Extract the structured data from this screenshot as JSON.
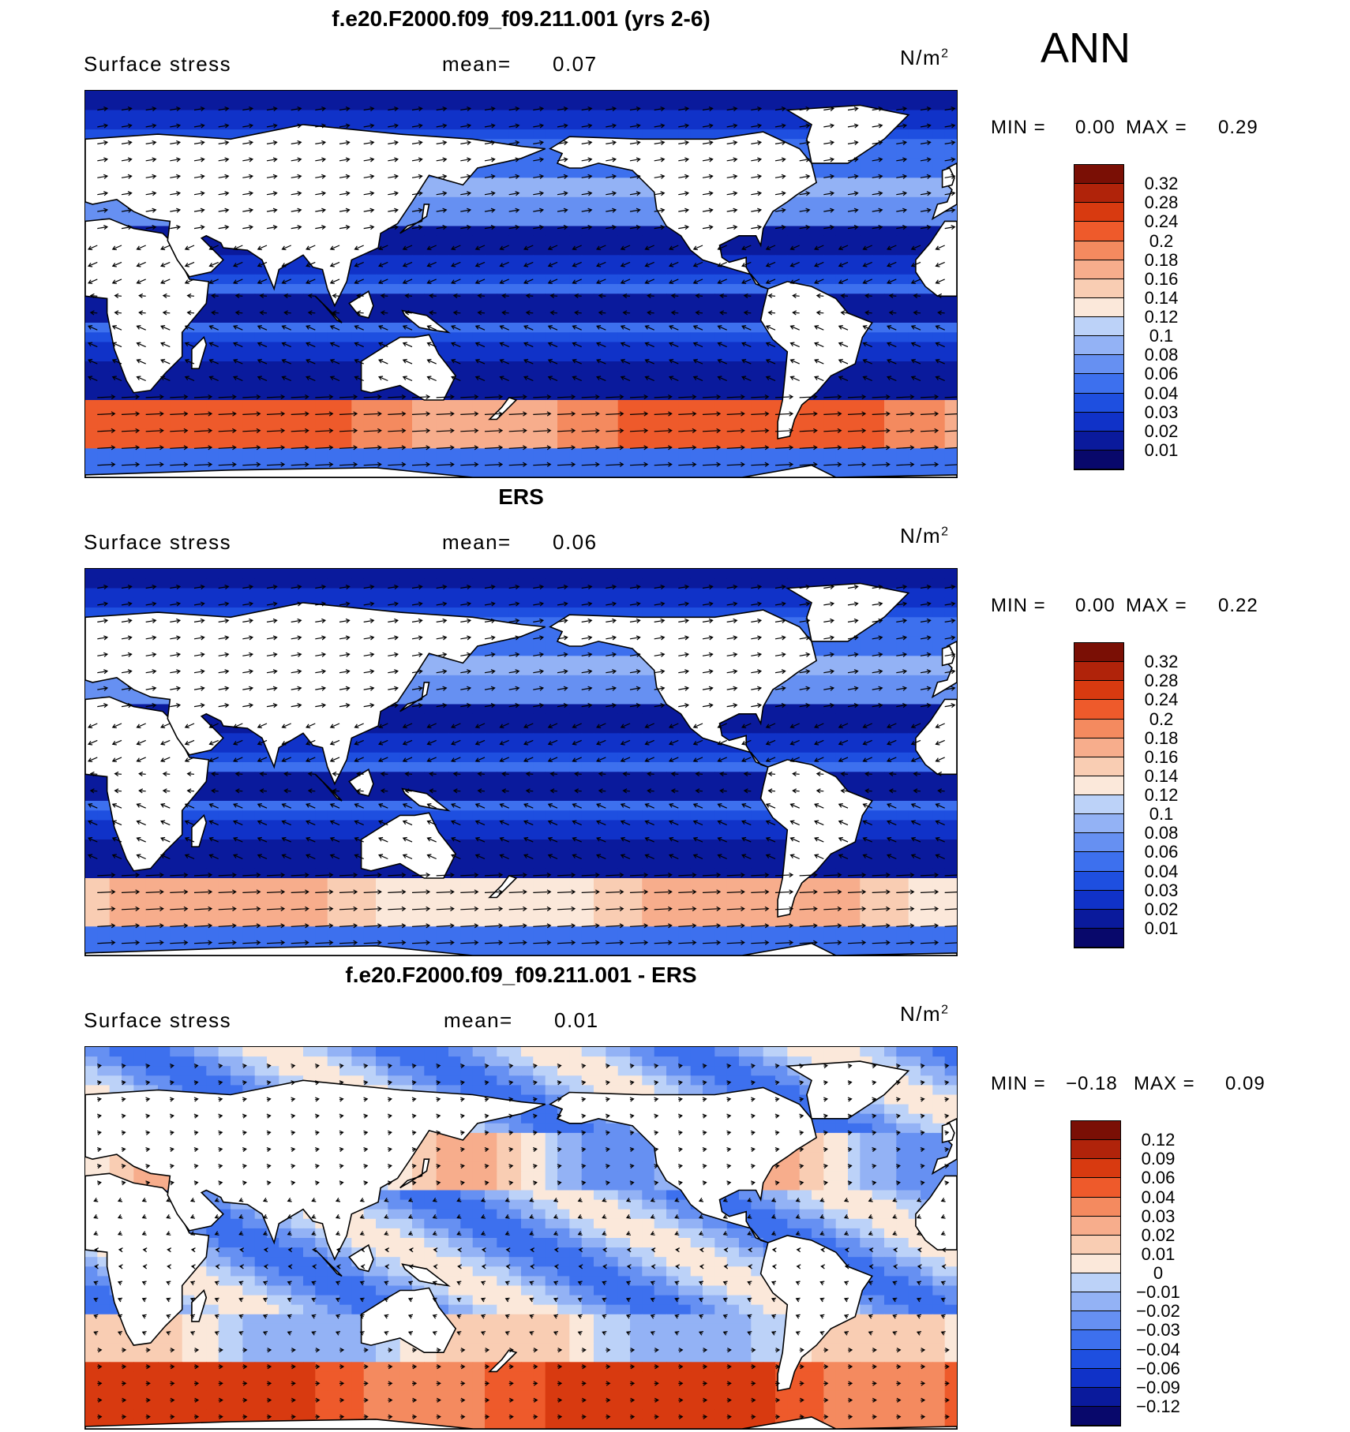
{
  "season": "ANN",
  "colors": {
    "abs_scale": [
      "#08086b",
      "#0a1a9c",
      "#1032c8",
      "#1e4fe0",
      "#3d70ee",
      "#6690f2",
      "#93b2f5",
      "#bcd2f8",
      "#dde9fb",
      "#fbe8da",
      "#f9cdb3",
      "#f7ad8c",
      "#f48a5f",
      "#ee5a2b",
      "#d83a10",
      "#b0230a",
      "#7a0f05"
    ],
    "diff_scale": [
      "#08086b",
      "#0a1a9c",
      "#1032c8",
      "#1e4fe0",
      "#3d70ee",
      "#6690f2",
      "#93b2f5",
      "#bcd2f8",
      "#dde9fb",
      "#fbe8da",
      "#f9cdb3",
      "#f7ad8c",
      "#f48a5f",
      "#ee5a2b",
      "#d83a10",
      "#b0230a",
      "#7a0f05"
    ]
  },
  "chart_data": [
    {
      "type": "heatmap",
      "title": "f.e20.F2000.f09_f09.211.001 (yrs 2-6)",
      "variable": "Surface stress",
      "mean_label": "mean=",
      "mean": "0.07",
      "units_base": "N/m",
      "units_exp": "2",
      "min_label": "MIN =",
      "min": "0.00",
      "max_label": "MAX =",
      "max": "0.29",
      "colorbar_levels": [
        "0.32",
        "0.28",
        "0.24",
        "0.2",
        "0.18",
        "0.16",
        "0.14",
        "0.12",
        "0.1",
        "0.08",
        "0.06",
        "0.04",
        "0.03",
        "0.02",
        "0.01"
      ],
      "overlay": "wind stress vectors",
      "map": "global cylindrical equidistant, 0E-360E, 70S-90N"
    },
    {
      "type": "heatmap",
      "title": "ERS",
      "variable": "Surface stress",
      "mean_label": "mean=",
      "mean": "0.06",
      "units_base": "N/m",
      "units_exp": "2",
      "min_label": "MIN =",
      "min": "0.00",
      "max_label": "MAX =",
      "max": "0.22",
      "colorbar_levels": [
        "0.32",
        "0.28",
        "0.24",
        "0.2",
        "0.18",
        "0.16",
        "0.14",
        "0.12",
        "0.1",
        "0.08",
        "0.06",
        "0.04",
        "0.03",
        "0.02",
        "0.01"
      ],
      "overlay": "wind stress vectors",
      "map": "global cylindrical equidistant, 0E-360E, 70S-90N"
    },
    {
      "type": "heatmap",
      "title": "f.e20.F2000.f09_f09.211.001 - ERS",
      "variable": "Surface stress",
      "mean_label": "mean=",
      "mean": "0.01",
      "units_base": "N/m",
      "units_exp": "2",
      "min_label": "MIN =",
      "min": "−0.18",
      "max_label": "MAX =",
      "max": "0.09",
      "colorbar_levels": [
        "0.12",
        "0.09",
        "0.06",
        "0.04",
        "0.03",
        "0.02",
        "0.01",
        "0",
        "−0.01",
        "−0.02",
        "−0.03",
        "−0.04",
        "−0.06",
        "−0.09",
        "−0.12"
      ],
      "overlay": "wind stress difference vectors",
      "map": "global cylindrical equidistant, 0E-360E, 70S-90N"
    }
  ]
}
